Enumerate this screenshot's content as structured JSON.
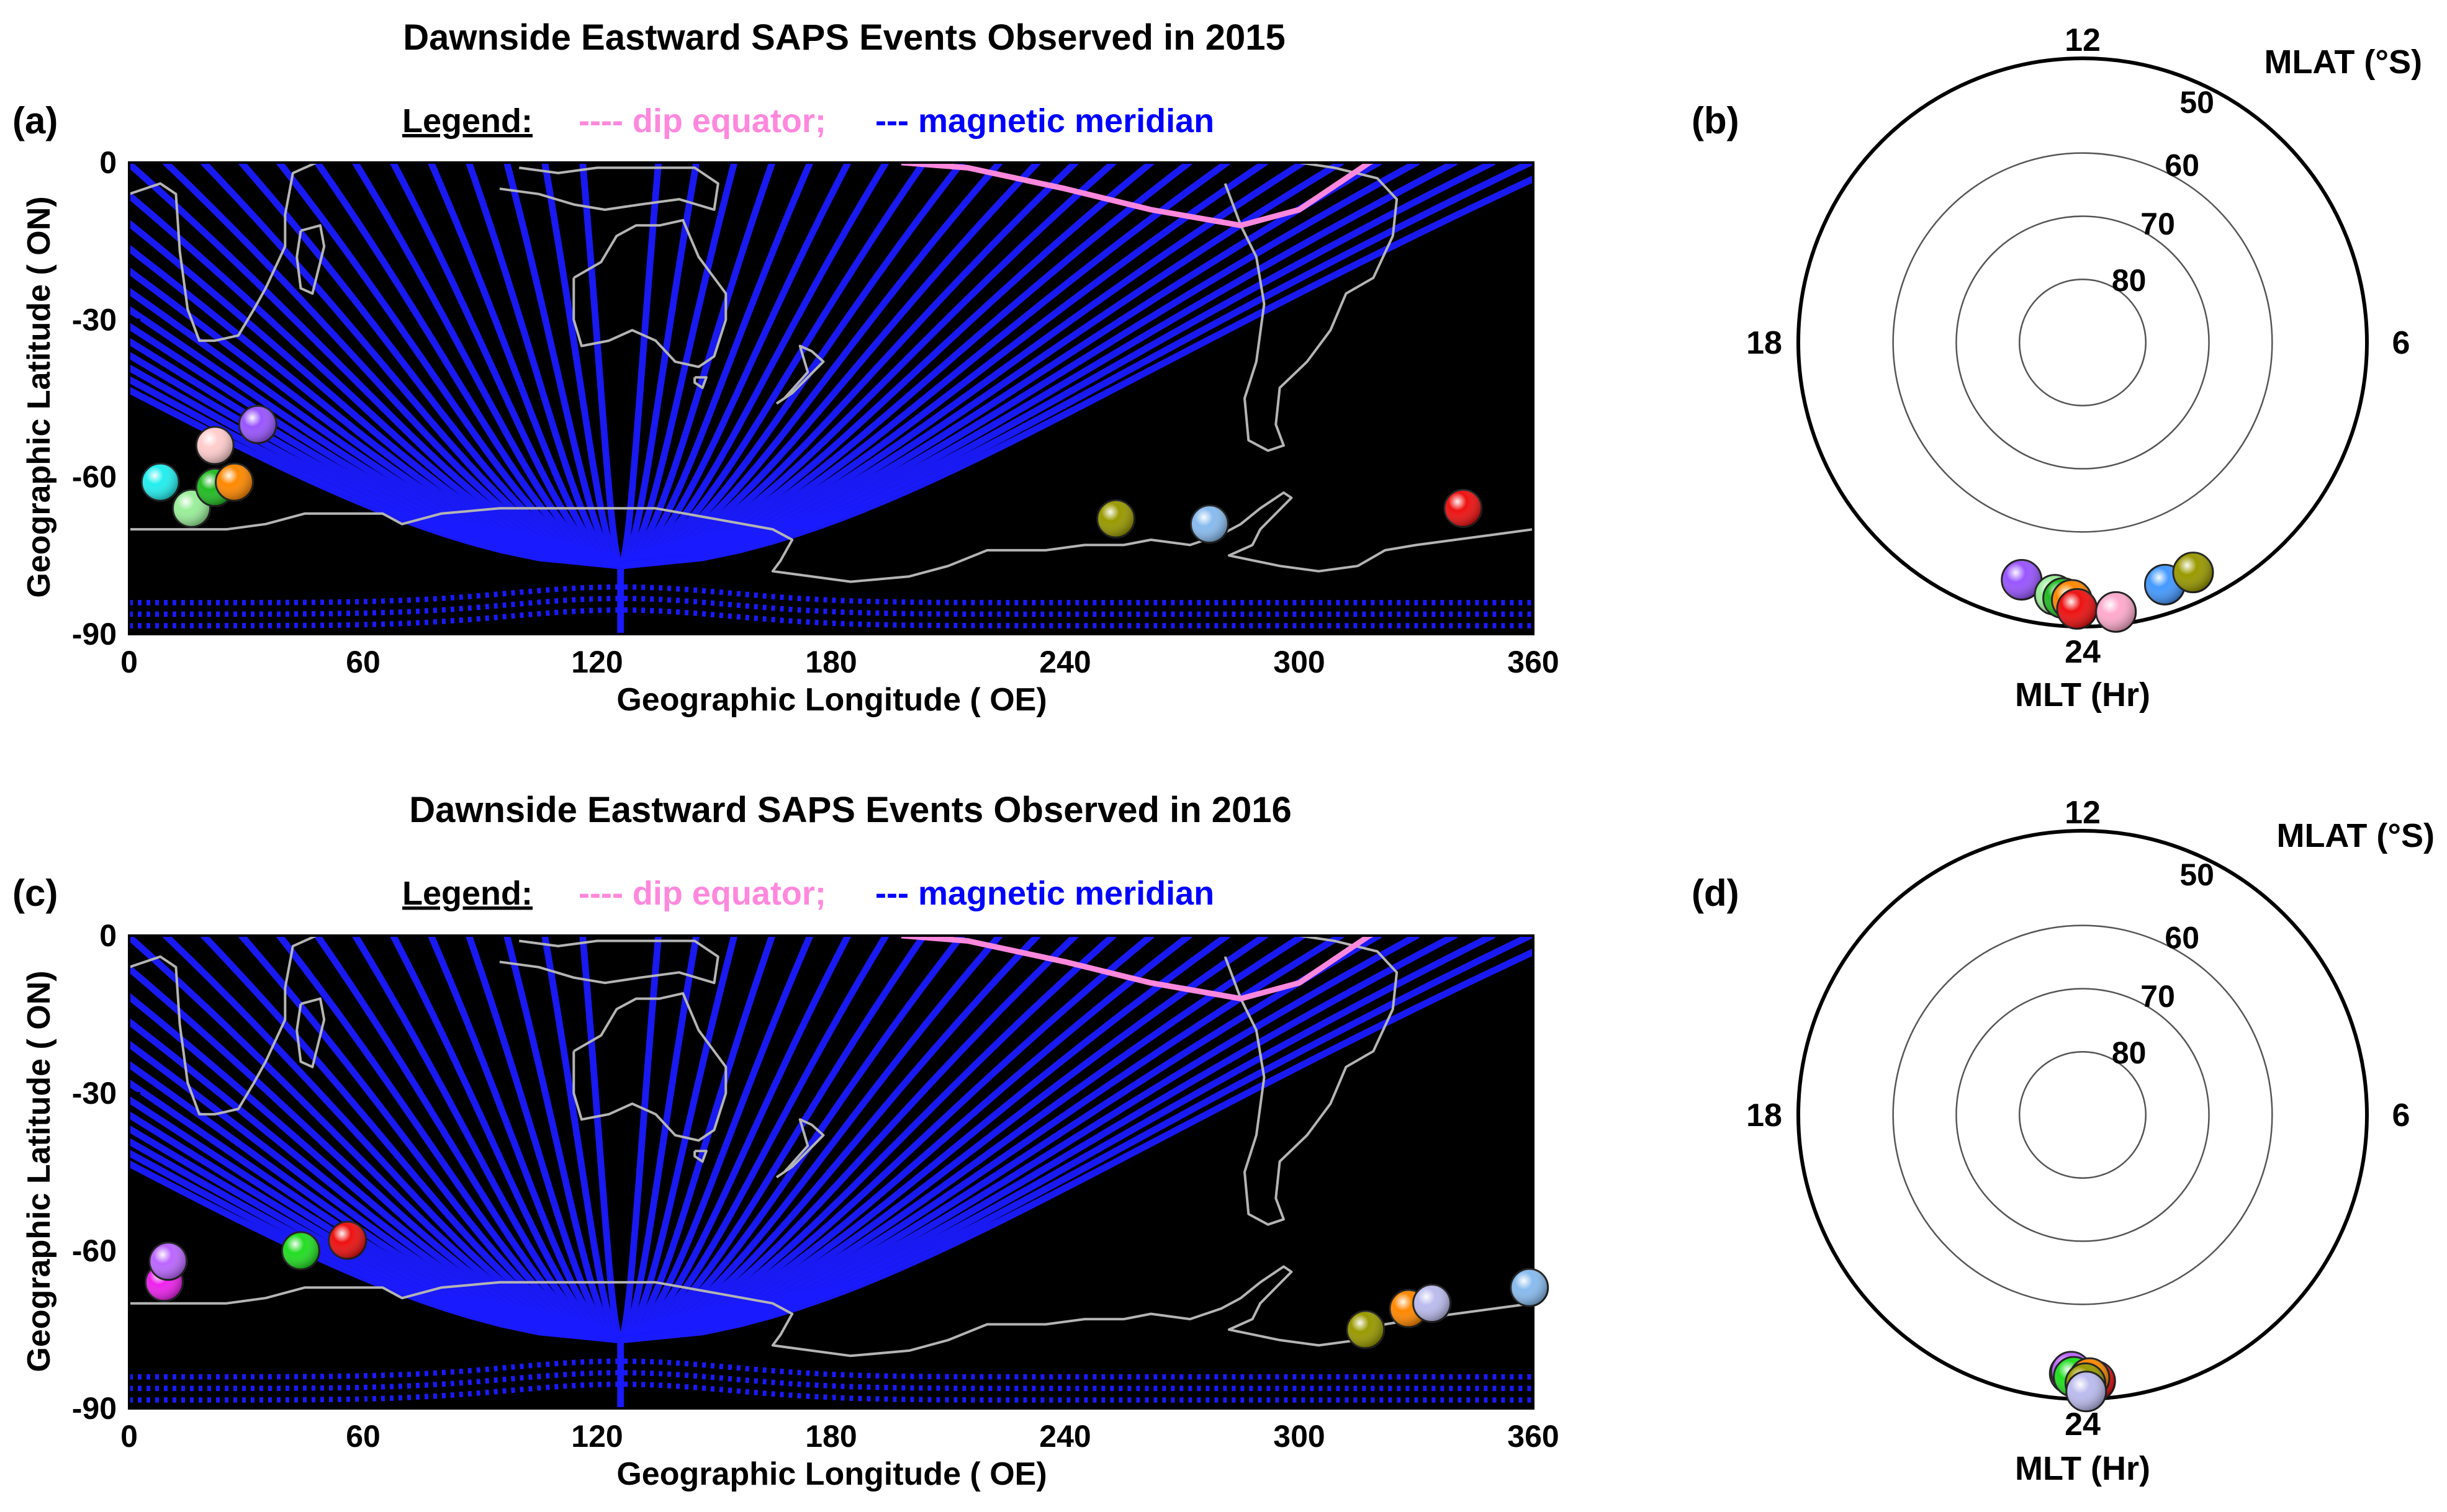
{
  "figure": {
    "panels": [
      {
        "kind": "map",
        "label": "(a)",
        "title": "Dawnside Eastward SAPS Events Observed in 2015",
        "legend": {
          "heading": "Legend:",
          "dip_equator": "---- dip equator;",
          "meridian": "--- magnetic meridian"
        },
        "xlabel": "Geographic Longitude ( OE)",
        "ylabel": "Geographic Latitude ( ON)"
      },
      {
        "kind": "polar",
        "label": "(b)",
        "rlabel": "MLAT (°S)",
        "tlabel": "MLT (Hr)"
      },
      {
        "kind": "map",
        "label": "(c)",
        "title": "Dawnside Eastward SAPS Events Observed in 2016",
        "legend": {
          "heading": "Legend:",
          "dip_equator": "---- dip equator;",
          "meridian": "--- magnetic meridian"
        },
        "xlabel": "Geographic Longitude ( OE)",
        "ylabel": "Geographic Latitude ( ON)"
      },
      {
        "kind": "polar",
        "label": "(d)",
        "rlabel": "MLAT (°S)",
        "tlabel": "MLT (Hr)"
      }
    ]
  },
  "colors": {
    "map_background": "#000000",
    "meridian": "#1a1aff",
    "dip_equator": "#ff88dd",
    "coastline": "#b4b4b4",
    "legend_meridian_text": "#0000ff",
    "legend_dip_text": "#ff88dd"
  },
  "chart_data": [
    {
      "type": "scatter",
      "panel": "(a)",
      "title": "Dawnside Eastward SAPS Events Observed in 2015",
      "xlabel": "Geographic Longitude ( OE)",
      "ylabel": "Geographic Latitude ( ON)",
      "xlim": [
        0,
        360
      ],
      "ylim": [
        -90,
        0
      ],
      "xticks": [
        "0",
        "60",
        "120",
        "180",
        "240",
        "300",
        "360"
      ],
      "yticks": [
        "0",
        "-30",
        "-60",
        "-90"
      ],
      "points": [
        {
          "lon": 8,
          "lat": -61,
          "color": "#22eeee"
        },
        {
          "lon": 16,
          "lat": -66,
          "color": "#99ee99"
        },
        {
          "lon": 22,
          "lat": -62,
          "color": "#22bb22"
        },
        {
          "lon": 22,
          "lat": -54,
          "color": "#ffcccc"
        },
        {
          "lon": 27,
          "lat": -61,
          "color": "#ff8800"
        },
        {
          "lon": 33,
          "lat": -50,
          "color": "#9955ff"
        },
        {
          "lon": 253,
          "lat": -68,
          "color": "#999900"
        },
        {
          "lon": 277,
          "lat": -69,
          "color": "#88bbee"
        },
        {
          "lon": 342,
          "lat": -66,
          "color": "#ee1111"
        }
      ]
    },
    {
      "type": "scatter",
      "panel": "(b)",
      "coordinate_system": "polar",
      "rlabel": "MLAT (°S)",
      "tlabel": "MLT (Hr)",
      "radial_ticks": [
        "50",
        "60",
        "70",
        "80"
      ],
      "angular_ticks": [
        "12",
        "18",
        "24",
        "6"
      ],
      "points": [
        {
          "mlt": 23.04,
          "mlat": 51.2,
          "color": "#9955ff"
        },
        {
          "mlt": 23.58,
          "mlat": 49.8,
          "color": "#99ee99"
        },
        {
          "mlt": 23.71,
          "mlat": 49.4,
          "color": "#22bb22"
        },
        {
          "mlt": 23.84,
          "mlat": 49.2,
          "color": "#ff8800"
        },
        {
          "mlt": 23.92,
          "mlat": 47.8,
          "color": "#ee1111"
        },
        {
          "mlt": 0.47,
          "mlat": 47.0,
          "color": "#ffaacc"
        },
        {
          "mlt": 1.25,
          "mlat": 49.5,
          "color": "#4499ff"
        },
        {
          "mlt": 1.71,
          "mlat": 49.6,
          "color": "#999900"
        }
      ]
    },
    {
      "type": "scatter",
      "panel": "(c)",
      "title": "Dawnside Eastward SAPS Events Observed in 2016",
      "xlabel": "Geographic Longitude ( OE)",
      "ylabel": "Geographic Latitude ( ON)",
      "xlim": [
        0,
        360
      ],
      "ylim": [
        -90,
        0
      ],
      "xticks": [
        "0",
        "60",
        "120",
        "180",
        "240",
        "300",
        "360"
      ],
      "yticks": [
        "0",
        "-30",
        "-60",
        "-90"
      ],
      "points": [
        {
          "lon": 9,
          "lat": -66,
          "color": "#ee22ee"
        },
        {
          "lon": 10,
          "lat": -62,
          "color": "#bb66ff"
        },
        {
          "lon": 44,
          "lat": -60,
          "color": "#22dd22"
        },
        {
          "lon": 56,
          "lat": -58,
          "color": "#ee1111"
        },
        {
          "lon": 317,
          "lat": -75,
          "color": "#999900"
        },
        {
          "lon": 328,
          "lat": -71,
          "color": "#ff8800"
        },
        {
          "lon": 334,
          "lat": -70,
          "color": "#bbbbee"
        },
        {
          "lon": 359,
          "lat": -67,
          "color": "#88bbee"
        }
      ]
    },
    {
      "type": "scatter",
      "panel": "(d)",
      "coordinate_system": "polar",
      "rlabel": "MLAT (°S)",
      "tlabel": "MLT (Hr)",
      "radial_ticks": [
        "50",
        "60",
        "70",
        "80"
      ],
      "angular_ticks": [
        "12",
        "18",
        "24",
        "6"
      ],
      "points": [
        {
          "mlt": 23.81,
          "mlat": 49.0,
          "color": "#ee22ee"
        },
        {
          "mlt": 23.83,
          "mlat": 49.3,
          "color": "#bb66ff"
        },
        {
          "mlt": 23.87,
          "mlat": 48.5,
          "color": "#22dd22"
        },
        {
          "mlt": 0.18,
          "mlat": 47.8,
          "color": "#ee1111"
        },
        {
          "mlt": 0.1,
          "mlat": 48.3,
          "color": "#ff8800"
        },
        {
          "mlt": 0.04,
          "mlat": 47.5,
          "color": "#999900"
        },
        {
          "mlt": 0.05,
          "mlat": 46.2,
          "color": "#bbbbee"
        }
      ]
    }
  ]
}
